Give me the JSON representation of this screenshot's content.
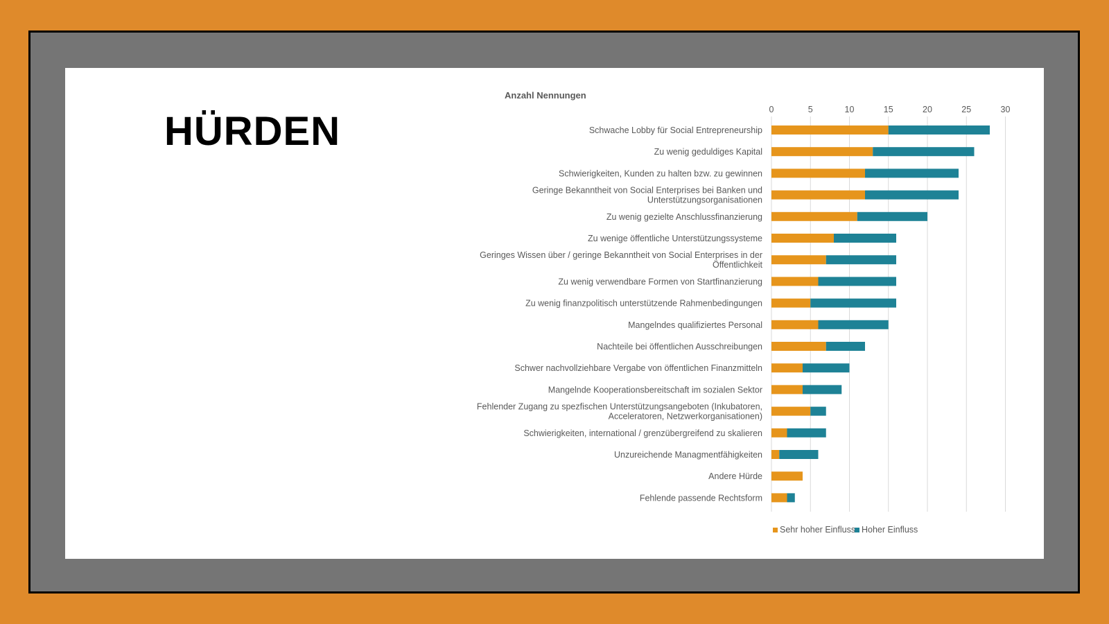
{
  "slide": {
    "title": "HÜRDEN"
  },
  "colors": {
    "background": "#df8a2b",
    "frame": "#757575",
    "series_a": "#e6951c",
    "series_b": "#1e8296"
  },
  "chart_data": {
    "type": "bar",
    "orientation": "horizontal",
    "stacked": true,
    "title": "Anzahl Nennungen",
    "xlim": [
      0,
      30
    ],
    "xticks": [
      0,
      5,
      10,
      15,
      20,
      25,
      30
    ],
    "grid": true,
    "legend_position": "bottom",
    "categories": [
      [
        "Schwache Lobby für Social Entrepreneurship"
      ],
      [
        "Zu wenig geduldiges Kapital"
      ],
      [
        "Schwierigkeiten, Kunden zu halten bzw. zu gewinnen"
      ],
      [
        "Geringe Bekanntheit von Social Enterprises bei Banken und",
        "Unterstützungsorganisationen"
      ],
      [
        "Zu wenig gezielte Anschlussfinanzierung"
      ],
      [
        "Zu wenige öffentliche Unterstützungssysteme"
      ],
      [
        "Geringes Wissen über / geringe Bekanntheit von Social Enterprises in der",
        "Öffentlichkeit"
      ],
      [
        "Zu wenig verwendbare Formen von Startfinanzierung"
      ],
      [
        "Zu wenig finanzpolitisch unterstützende Rahmenbedingungen"
      ],
      [
        "Mangelndes qualifiziertes Personal"
      ],
      [
        "Nachteile bei öffentlichen Ausschreibungen"
      ],
      [
        "Schwer nachvollziehbare Vergabe von öffentlichen Finanzmitteln"
      ],
      [
        "Mangelnde Kooperationsbereitschaft im sozialen Sektor"
      ],
      [
        "Fehlender Zugang zu spezfischen Unterstützungsangeboten (Inkubatoren,",
        "Acceleratoren, Netzwerkorganisationen)"
      ],
      [
        "Schwierigkeiten, international / grenzübergreifend zu skalieren"
      ],
      [
        "Unzureichende Managmentfähigkeiten"
      ],
      [
        "Andere Hürde"
      ],
      [
        "Fehlende passende Rechtsform"
      ]
    ],
    "series": [
      {
        "name": "Sehr hoher Einfluss",
        "color": "#e6951c",
        "values": [
          15,
          13,
          12,
          12,
          11,
          8,
          7,
          6,
          5,
          6,
          7,
          4,
          4,
          5,
          2,
          1,
          4,
          2
        ]
      },
      {
        "name": "Hoher Einfluss",
        "color": "#1e8296",
        "values": [
          13,
          13,
          12,
          12,
          9,
          8,
          9,
          10,
          11,
          9,
          5,
          6,
          5,
          2,
          5,
          5,
          0,
          1
        ]
      }
    ]
  }
}
